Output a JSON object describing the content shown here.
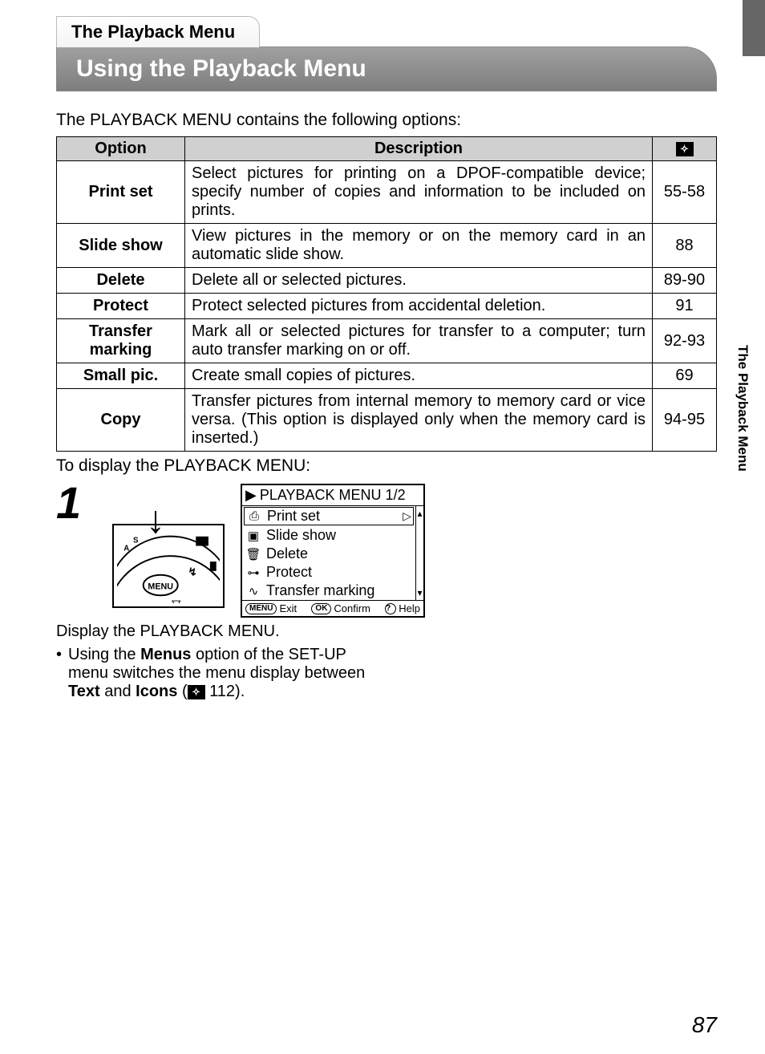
{
  "header": {
    "small_tab": "The Playback Menu",
    "big_tab": "Using the Playback Menu"
  },
  "side_tab_label": "The Playback Menu",
  "intro": "The PLAYBACK MENU contains the following options:",
  "table": {
    "h_option": "Option",
    "h_desc": "Description",
    "rows": [
      {
        "option": "Print set",
        "desc": "Select pictures for printing on a DPOF-compatible device; specify number of copies and information to be included on prints.",
        "page": "55-58"
      },
      {
        "option": "Slide show",
        "desc": "View pictures in the memory or on the memory card in an automatic slide show.",
        "page": "88"
      },
      {
        "option": "Delete",
        "desc": "Delete all or selected pictures.",
        "page": "89-90"
      },
      {
        "option": "Protect",
        "desc": "Protect selected pictures from accidental deletion.",
        "page": "91"
      },
      {
        "option": "Transfer marking",
        "desc": "Mark all or selected pictures for transfer to a computer; turn auto transfer marking on or off.",
        "page": "92-93"
      },
      {
        "option": "Small pic.",
        "desc": "Create small copies of pictures.",
        "page": "69"
      },
      {
        "option": "Copy",
        "desc": "Transfer pictures from internal memory to memory card or vice versa. (This option is displayed only when the memory card is inserted.)",
        "page": "94-95"
      }
    ]
  },
  "subhead": "To display the PLAYBACK MENU:",
  "step_number": "1",
  "lcd": {
    "title": "PLAYBACK MENU 1/2",
    "items": [
      {
        "label": "Print set",
        "icon": "⎙",
        "selected": true
      },
      {
        "label": "Slide show",
        "icon": "▣",
        "selected": false
      },
      {
        "label": "Delete",
        "icon": "🗑",
        "selected": false
      },
      {
        "label": "Protect",
        "icon": "⊶",
        "selected": false
      },
      {
        "label": "Transfer marking",
        "icon": "∿",
        "selected": false
      }
    ],
    "footer": {
      "menu_btn": "MENU",
      "exit": "Exit",
      "ok_btn": "OK",
      "confirm": "Confirm",
      "help_icon": "?",
      "help": "Help"
    }
  },
  "caption": "Display the PLAYBACK MENU.",
  "bullet_pre": "Using the ",
  "bullet_bold1": "Menus",
  "bullet_mid1": " option of the SET-UP menu switches the menu display between ",
  "bullet_bold2": "Text",
  "bullet_mid2": " and ",
  "bullet_bold3": "Icons",
  "bullet_ref": " 112).",
  "page_number": "87"
}
